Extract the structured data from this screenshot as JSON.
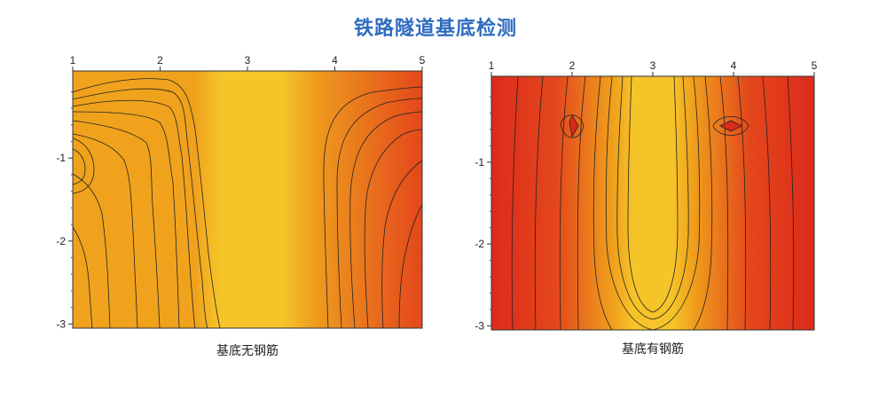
{
  "title": "铁路隧道基底检测",
  "colors": {
    "title": "#2e6cc0",
    "scale": [
      "#f5c428",
      "#f0a21c",
      "#ea7a1e",
      "#e4471c",
      "#dc2a1a"
    ]
  },
  "chart_data": [
    {
      "type": "heatmap",
      "caption": "基底无钢筋",
      "x_ticks": [
        "1",
        "2",
        "3",
        "4",
        "5"
      ],
      "y_ticks": [
        "-1",
        "-2",
        "-3"
      ],
      "xlim": [
        1,
        5
      ],
      "ylim": [
        -3.05,
        0.05
      ],
      "contour_lines": true,
      "features": [
        {
          "x": 3.0,
          "y": -1.2,
          "kind": "low-band"
        },
        {
          "x": 1.8,
          "y": -0.65,
          "kind": "high"
        },
        {
          "x": 4.8,
          "y": -0.85,
          "kind": "high"
        },
        {
          "x": 1.05,
          "y": -0.95,
          "kind": "high"
        }
      ]
    },
    {
      "type": "heatmap",
      "caption": "基底有钢筋",
      "x_ticks": [
        "1",
        "2",
        "3",
        "4",
        "5"
      ],
      "y_ticks": [
        "-1",
        "-2",
        "-3"
      ],
      "xlim": [
        1,
        5
      ],
      "ylim": [
        -3.05,
        0.05
      ],
      "contour_lines": true,
      "features": [
        {
          "x": 3.0,
          "y": -1.6,
          "kind": "low-band"
        },
        {
          "x": 2.0,
          "y": -0.5,
          "kind": "high-spot"
        },
        {
          "x": 4.0,
          "y": -0.5,
          "kind": "high-spot"
        },
        {
          "x": 1.1,
          "y": -1.0,
          "kind": "high"
        },
        {
          "x": 4.9,
          "y": -1.0,
          "kind": "high"
        }
      ]
    }
  ]
}
